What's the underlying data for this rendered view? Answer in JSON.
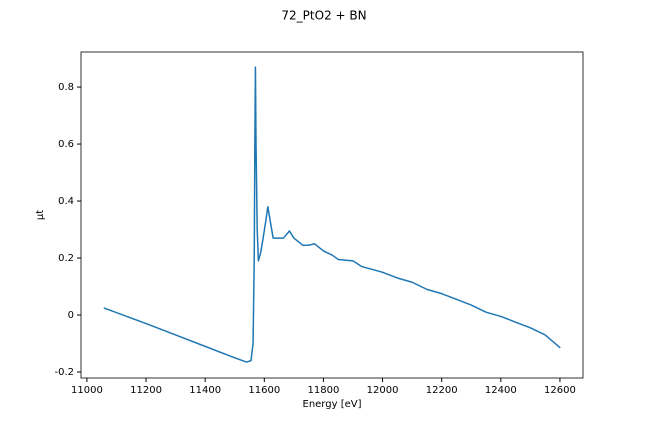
{
  "chart_data": {
    "type": "line",
    "title": "72_PtO2 + BN",
    "x_label": "Energy [eV]",
    "y_label": "μt",
    "x": [
      11057,
      11200,
      11300,
      11400,
      11500,
      11540,
      11555,
      11562,
      11566,
      11568,
      11570,
      11572,
      11576,
      11580,
      11588,
      11596,
      11605,
      11612,
      11620,
      11630,
      11645,
      11665,
      11685,
      11700,
      11730,
      11750,
      11770,
      11800,
      11830,
      11850,
      11900,
      11930,
      12000,
      12050,
      12100,
      12150,
      12200,
      12250,
      12300,
      12350,
      12400,
      12450,
      12500,
      12550,
      12601
    ],
    "series": [
      {
        "name": "72_PtO2 + BN",
        "color": "#1f77b4",
        "values": [
          0.025,
          -0.03,
          -0.07,
          -0.11,
          -0.15,
          -0.165,
          -0.16,
          -0.1,
          0.2,
          0.6,
          0.87,
          0.6,
          0.3,
          0.19,
          0.22,
          0.27,
          0.33,
          0.38,
          0.33,
          0.27,
          0.27,
          0.27,
          0.295,
          0.27,
          0.245,
          0.245,
          0.25,
          0.225,
          0.21,
          0.195,
          0.19,
          0.17,
          0.15,
          0.13,
          0.115,
          0.09,
          0.075,
          0.055,
          0.035,
          0.01,
          -0.005,
          -0.025,
          -0.045,
          -0.07,
          -0.115
        ]
      }
    ],
    "xlim": [
      10980,
      12678
    ],
    "ylim": [
      -0.221,
      0.923
    ],
    "xticks": [
      11000,
      11200,
      11400,
      11600,
      11800,
      12000,
      12200,
      12400,
      12600
    ],
    "yticks": [
      -0.2,
      0.0,
      0.2,
      0.4,
      0.6,
      0.8
    ]
  }
}
